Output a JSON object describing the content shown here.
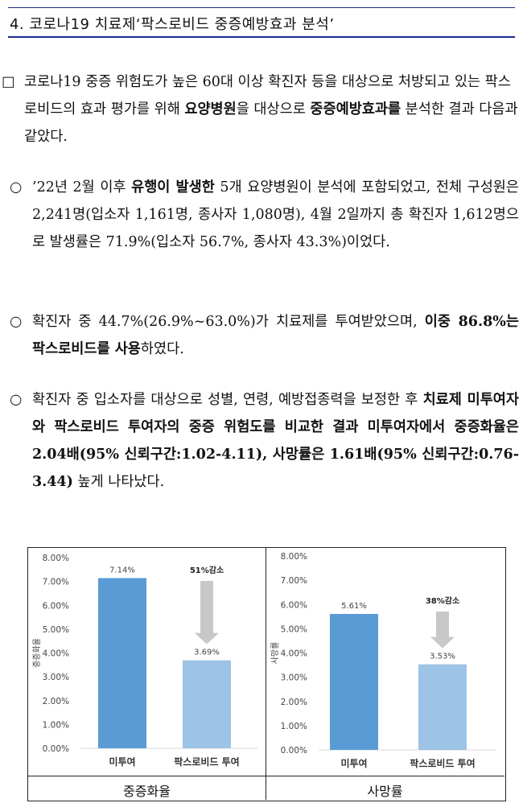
{
  "header": {
    "title": "4. 코로나19 치료제‘팍스로비드 중증예방효과 분석’"
  },
  "paragraphs": {
    "p1": {
      "marker": "□",
      "t1": "코로나19 중증 위험도가 높은 60대 이상 확진자 등을 대상으로 처방되고 있는 팍스로비드의 효과 평가를 위해 ",
      "b1": "요양병원",
      "t2": "을 대상으로 ",
      "b2": "중증예방효과를",
      "t3": " 분석한 결과 다음과 같았다."
    },
    "p2": {
      "marker": "○",
      "t1": "’22년 2월 이후 ",
      "b1": "유행이 발생한",
      "t2": " 5개 요양병원이 분석에 포함되었고, 전체 구성원은 2,241명(입소자 1,161명, 종사자 1,080명), 4월 2일까지 총 확진자 1,612명으로 발생률은 71.9%(입소자 56.7%, 종사자 43.3%)이었다."
    },
    "p3": {
      "marker": "○",
      "t1": "확진자 중 44.7%(26.9%~63.0%)가 치료제를 투여받았으며, ",
      "b1": "이중 86.8%는 팍스로비드를 사용",
      "t2": "하였다."
    },
    "p4": {
      "marker": "○",
      "t1": "확진자 중 입소자를 대상으로 성별, 연령, 예방접종력을 보정한 후 ",
      "b1": "치료제 미투여자와 팍스로비드 투여자의 중증 위험도를 비교한 결과 미투여자에서 중증화율은 2.04배(95% 신뢰구간:1.02-4.11), 사망률은 1.61배(95% 신뢰구간:0.76-3.44)",
      "t2": " 높게 나타났다."
    }
  },
  "colors": {
    "header_rule": "#1a2a8a",
    "bar_untreated": "#5b9bd5",
    "bar_paxlovid": "#9dc3e6",
    "arrow": "#c8c8c8"
  },
  "chart_data": [
    {
      "type": "bar",
      "caption": "중증화율",
      "ylabel": "중증화율",
      "categories": [
        "미투여",
        "팍스로비드 투여"
      ],
      "values": [
        7.14,
        3.69
      ],
      "value_labels": [
        "7.14%",
        "3.69%"
      ],
      "ylim": [
        0,
        8
      ],
      "yticks": [
        "0.00%",
        "1.00%",
        "2.00%",
        "3.00%",
        "4.00%",
        "5.00%",
        "6.00%",
        "7.00%",
        "8.00%"
      ],
      "annotation": "51%감소",
      "grid": false
    },
    {
      "type": "bar",
      "caption": "사망률",
      "ylabel": "사망률",
      "categories": [
        "미투여",
        "팍스로비드 투여"
      ],
      "values": [
        5.61,
        3.53
      ],
      "value_labels": [
        "5.61%",
        "3.53%"
      ],
      "ylim": [
        0,
        8
      ],
      "yticks": [
        "0.00%",
        "1.00%",
        "2.00%",
        "3.00%",
        "4.00%",
        "5.00%",
        "6.00%",
        "7.00%",
        "8.00%"
      ],
      "annotation": "38%감소",
      "grid": false
    }
  ]
}
